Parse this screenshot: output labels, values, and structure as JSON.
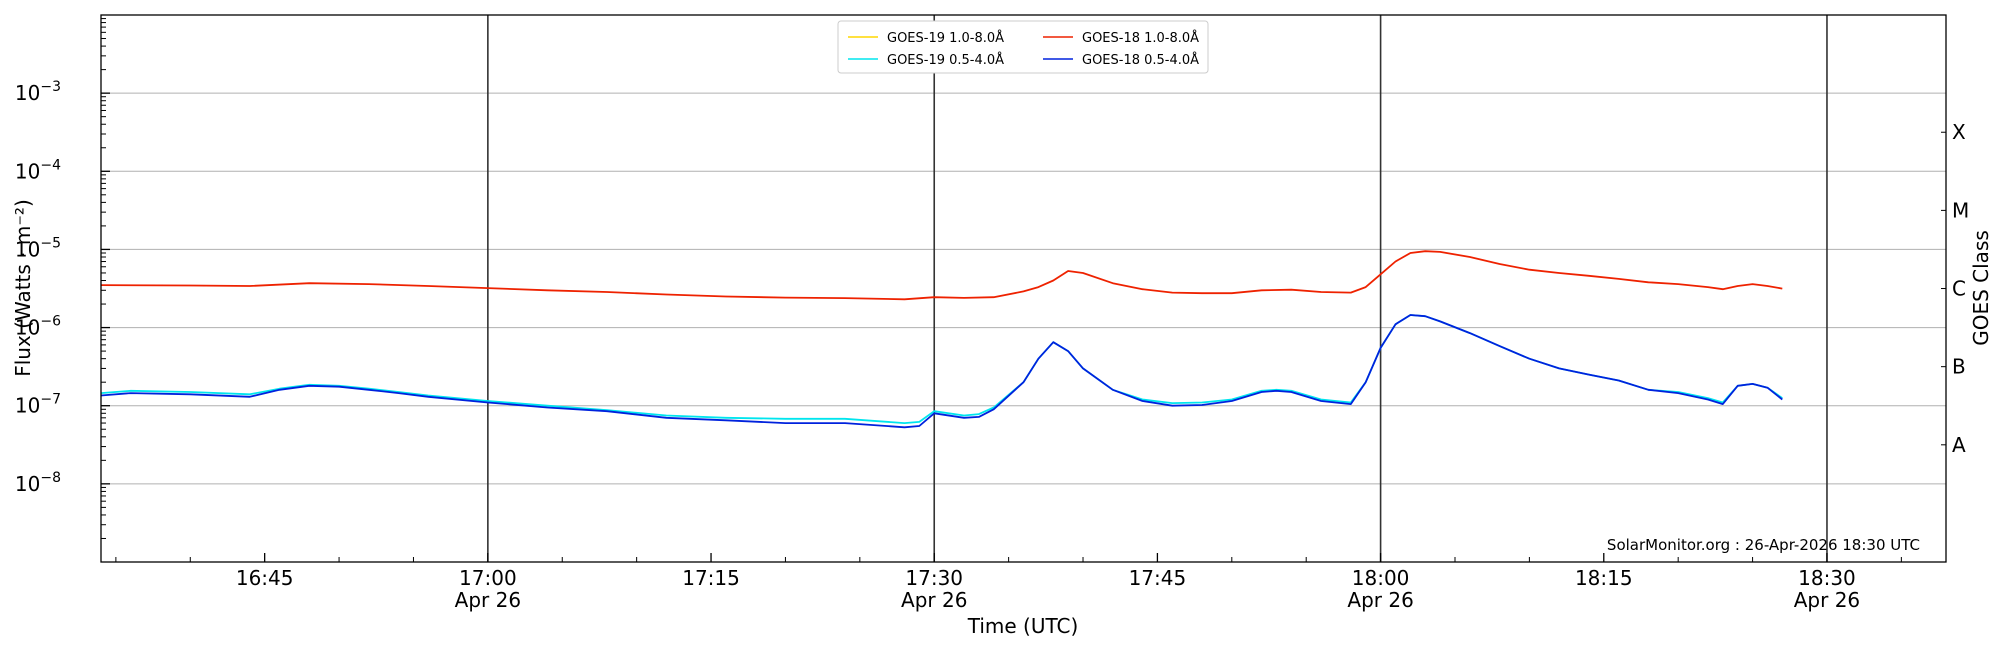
{
  "chart_data": {
    "type": "line",
    "title": "",
    "xlabel": "Time (UTC)",
    "ylabel": "Flux (Watts · m⁻²)",
    "right_ylabel": "GOES Class",
    "yscale": "log",
    "ylim": [
      1e-09,
      0.01
    ],
    "xlim": [
      "16:34",
      "18:38"
    ],
    "grid": "horizontal",
    "legend_position": "top-center",
    "x_ticks": [
      {
        "t": "16:45",
        "label": "16:45",
        "sub": ""
      },
      {
        "t": "17:00",
        "label": "17:00",
        "sub": "Apr 26"
      },
      {
        "t": "17:15",
        "label": "17:15",
        "sub": ""
      },
      {
        "t": "17:30",
        "label": "17:30",
        "sub": "Apr 26"
      },
      {
        "t": "17:45",
        "label": "17:45",
        "sub": ""
      },
      {
        "t": "18:00",
        "label": "18:00",
        "sub": "Apr 26"
      },
      {
        "t": "18:15",
        "label": "18:15",
        "sub": ""
      },
      {
        "t": "18:30",
        "label": "18:30",
        "sub": "Apr 26"
      }
    ],
    "y_ticks": [
      {
        "value": 1e-08,
        "base": "10",
        "exp": "−8"
      },
      {
        "value": 1e-07,
        "base": "10",
        "exp": "−7"
      },
      {
        "value": 1e-06,
        "base": "10",
        "exp": "−6"
      },
      {
        "value": 1e-05,
        "base": "10",
        "exp": "−5"
      },
      {
        "value": 0.0001,
        "base": "10",
        "exp": "−4"
      },
      {
        "value": 0.001,
        "base": "10",
        "exp": "−3"
      }
    ],
    "vertical_lines": [
      "17:00",
      "17:30",
      "18:00",
      "18:30"
    ],
    "goes_classes": [
      {
        "label": "A",
        "value": 3.16e-08
      },
      {
        "label": "B",
        "value": 3.16e-07
      },
      {
        "label": "C",
        "value": 3.16e-06
      },
      {
        "label": "M",
        "value": 3.16e-05
      },
      {
        "label": "X",
        "value": 0.000316
      }
    ],
    "legend": [
      {
        "name": "GOES-19 1.0-8.0Å",
        "color": "#ffd700"
      },
      {
        "name": "GOES-19 0.5-4.0Å",
        "color": "#00e5ee"
      },
      {
        "name": "GOES-18 1.0-8.0Å",
        "color": "#ee2200"
      },
      {
        "name": "GOES-18 0.5-4.0Å",
        "color": "#0022dd"
      }
    ],
    "credit": "SolarMonitor.org : 26-Apr-2026 18:30 UTC",
    "series": [
      {
        "name": "GOES-18 1.0-8.0Å",
        "color": "#ee2200",
        "x": [
          "16:34",
          "16:40",
          "16:44",
          "16:48",
          "16:52",
          "16:56",
          "17:00",
          "17:04",
          "17:08",
          "17:12",
          "17:16",
          "17:20",
          "17:24",
          "17:28",
          "17:30",
          "17:32",
          "17:34",
          "17:36",
          "17:37",
          "17:38",
          "17:39",
          "17:40",
          "17:42",
          "17:44",
          "17:46",
          "17:48",
          "17:50",
          "17:52",
          "17:54",
          "17:56",
          "17:58",
          "17:59",
          "18:00",
          "18:01",
          "18:02",
          "18:03",
          "18:04",
          "18:06",
          "18:08",
          "18:10",
          "18:12",
          "18:14",
          "18:16",
          "18:18",
          "18:20",
          "18:22",
          "18:23",
          "18:24",
          "18:25",
          "18:26",
          "18:27"
        ],
        "values": [
          3.5e-06,
          3.45e-06,
          3.4e-06,
          3.7e-06,
          3.6e-06,
          3.4e-06,
          3.2e-06,
          3e-06,
          2.85e-06,
          2.65e-06,
          2.5e-06,
          2.42e-06,
          2.38e-06,
          2.3e-06,
          2.45e-06,
          2.4e-06,
          2.45e-06,
          2.9e-06,
          3.3e-06,
          4e-06,
          5.3e-06,
          5e-06,
          3.7e-06,
          3.1e-06,
          2.8e-06,
          2.75e-06,
          2.75e-06,
          3e-06,
          3.05e-06,
          2.85e-06,
          2.8e-06,
          3.3e-06,
          4.8e-06,
          7e-06,
          9e-06,
          9.5e-06,
          9.3e-06,
          8e-06,
          6.5e-06,
          5.5e-06,
          5e-06,
          4.6e-06,
          4.2e-06,
          3.8e-06,
          3.6e-06,
          3.3e-06,
          3.1e-06,
          3.4e-06,
          3.6e-06,
          3.4e-06,
          3.15e-06
        ]
      },
      {
        "name": "GOES-19 0.5-4.0Å",
        "color": "#00e5ee",
        "x": [
          "16:34",
          "16:36",
          "16:40",
          "16:44",
          "16:46",
          "16:48",
          "16:50",
          "16:52",
          "16:54",
          "16:56",
          "17:00",
          "17:04",
          "17:08",
          "17:12",
          "17:16",
          "17:20",
          "17:24",
          "17:28",
          "17:29",
          "17:30",
          "17:32",
          "17:33",
          "17:34",
          "17:36",
          "17:37",
          "17:38",
          "17:39",
          "17:40",
          "17:42",
          "17:44",
          "17:46",
          "17:48",
          "17:50",
          "17:52",
          "17:53",
          "17:54",
          "17:56",
          "17:58",
          "17:59",
          "18:00",
          "18:01",
          "18:02",
          "18:03",
          "18:04",
          "18:06",
          "18:08",
          "18:10",
          "18:12",
          "18:14",
          "18:16",
          "18:18",
          "18:20",
          "18:22",
          "18:23",
          "18:24",
          "18:25",
          "18:26",
          "18:27"
        ],
        "values": [
          1.45e-07,
          1.55e-07,
          1.5e-07,
          1.4e-07,
          1.65e-07,
          1.85e-07,
          1.8e-07,
          1.65e-07,
          1.5e-07,
          1.35e-07,
          1.15e-07,
          1e-07,
          8.8e-08,
          7.5e-08,
          7e-08,
          6.8e-08,
          6.8e-08,
          6e-08,
          6.2e-08,
          8.5e-08,
          7.5e-08,
          7.8e-08,
          9.5e-08,
          2e-07,
          4e-07,
          6.5e-07,
          5e-07,
          3e-07,
          1.6e-07,
          1.2e-07,
          1.08e-07,
          1.1e-07,
          1.2e-07,
          1.55e-07,
          1.6e-07,
          1.55e-07,
          1.2e-07,
          1.1e-07,
          2e-07,
          5.5e-07,
          1.1e-06,
          1.45e-06,
          1.4e-06,
          1.2e-06,
          8.5e-07,
          5.8e-07,
          4e-07,
          3e-07,
          2.5e-07,
          2.1e-07,
          1.6e-07,
          1.5e-07,
          1.25e-07,
          1.1e-07,
          1.8e-07,
          1.9e-07,
          1.7e-07,
          1.25e-07
        ]
      },
      {
        "name": "GOES-18 0.5-4.0Å",
        "color": "#0022dd",
        "x": [
          "16:34",
          "16:36",
          "16:40",
          "16:44",
          "16:46",
          "16:48",
          "16:50",
          "16:52",
          "16:54",
          "16:56",
          "17:00",
          "17:04",
          "17:08",
          "17:12",
          "17:16",
          "17:20",
          "17:24",
          "17:28",
          "17:29",
          "17:30",
          "17:32",
          "17:33",
          "17:34",
          "17:36",
          "17:37",
          "17:38",
          "17:39",
          "17:40",
          "17:42",
          "17:44",
          "17:46",
          "17:48",
          "17:50",
          "17:52",
          "17:53",
          "17:54",
          "17:56",
          "17:58",
          "17:59",
          "18:00",
          "18:01",
          "18:02",
          "18:03",
          "18:04",
          "18:06",
          "18:08",
          "18:10",
          "18:12",
          "18:14",
          "18:16",
          "18:18",
          "18:20",
          "18:22",
          "18:23",
          "18:24",
          "18:25",
          "18:26",
          "18:27"
        ],
        "values": [
          1.35e-07,
          1.45e-07,
          1.4e-07,
          1.3e-07,
          1.6e-07,
          1.8e-07,
          1.75e-07,
          1.6e-07,
          1.45e-07,
          1.3e-07,
          1.1e-07,
          9.5e-08,
          8.5e-08,
          7e-08,
          6.5e-08,
          6e-08,
          6e-08,
          5.3e-08,
          5.5e-08,
          8e-08,
          7e-08,
          7.2e-08,
          9e-08,
          2e-07,
          4e-07,
          6.5e-07,
          5e-07,
          3e-07,
          1.6e-07,
          1.15e-07,
          1e-07,
          1.02e-07,
          1.15e-07,
          1.5e-07,
          1.55e-07,
          1.5e-07,
          1.15e-07,
          1.05e-07,
          2e-07,
          5.5e-07,
          1.1e-06,
          1.45e-06,
          1.4e-06,
          1.2e-06,
          8.5e-07,
          5.8e-07,
          4e-07,
          3e-07,
          2.5e-07,
          2.1e-07,
          1.6e-07,
          1.45e-07,
          1.2e-07,
          1.05e-07,
          1.8e-07,
          1.9e-07,
          1.7e-07,
          1.2e-07
        ]
      }
    ]
  }
}
